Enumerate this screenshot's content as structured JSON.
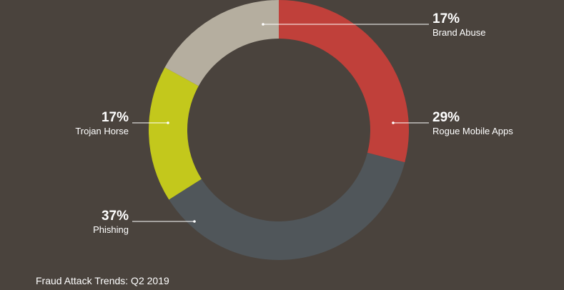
{
  "chart_data": {
    "type": "donut",
    "title": "Fraud Attack Trends: Q2 2019",
    "categories": [
      "Rogue Mobile Apps",
      "Phishing",
      "Trojan Horse",
      "Brand Abuse"
    ],
    "values": [
      29,
      37,
      17,
      17
    ],
    "value_labels": [
      "29%",
      "37%",
      "17%",
      "17%"
    ],
    "colors": [
      "#c0403a",
      "#50565a",
      "#c3c81c",
      "#b5ae9f"
    ]
  }
}
